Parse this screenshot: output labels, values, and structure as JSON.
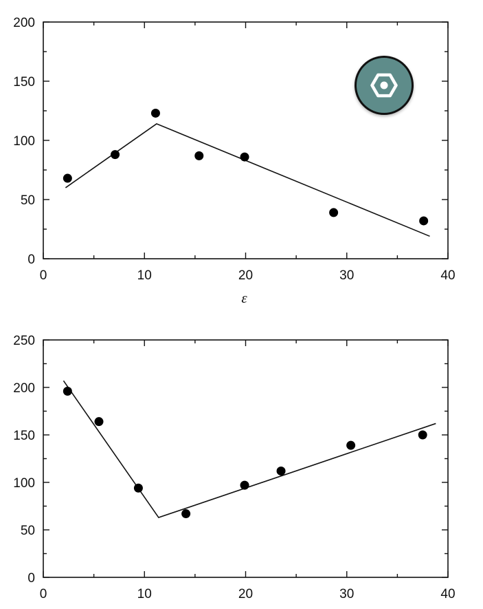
{
  "chart_data": [
    {
      "type": "scatter",
      "xlabel": "ε",
      "ylabel": "",
      "xlim": [
        0,
        40
      ],
      "ylim": [
        0,
        200
      ],
      "xticks": [
        0,
        10,
        20,
        30,
        40
      ],
      "yticks": [
        0,
        50,
        100,
        150,
        200
      ],
      "points": [
        {
          "x": 2.4,
          "y": 68
        },
        {
          "x": 7.1,
          "y": 88
        },
        {
          "x": 11.1,
          "y": 123
        },
        {
          "x": 15.4,
          "y": 87
        },
        {
          "x": 19.9,
          "y": 86
        },
        {
          "x": 28.7,
          "y": 39
        },
        {
          "x": 37.6,
          "y": 32
        }
      ],
      "fit_line": [
        {
          "x": 2.2,
          "y": 60
        },
        {
          "x": 11.2,
          "y": 114
        },
        {
          "x": 38.2,
          "y": 19
        }
      ],
      "grid": false,
      "badge_icon": "hexagon-icon",
      "badge_color": "#5e8c8a"
    },
    {
      "type": "scatter",
      "xlabel": "",
      "ylabel": "",
      "xlim": [
        0,
        40
      ],
      "ylim": [
        0,
        250
      ],
      "xticks": [
        0,
        10,
        20,
        30,
        40
      ],
      "yticks": [
        0,
        50,
        100,
        150,
        200,
        250
      ],
      "points": [
        {
          "x": 2.4,
          "y": 196
        },
        {
          "x": 5.5,
          "y": 164
        },
        {
          "x": 9.4,
          "y": 94
        },
        {
          "x": 14.1,
          "y": 67
        },
        {
          "x": 19.9,
          "y": 97
        },
        {
          "x": 23.5,
          "y": 112
        },
        {
          "x": 30.4,
          "y": 139
        },
        {
          "x": 37.5,
          "y": 150
        }
      ],
      "fit_line": [
        {
          "x": 2.0,
          "y": 207
        },
        {
          "x": 11.4,
          "y": 63
        },
        {
          "x": 38.8,
          "y": 162
        }
      ],
      "grid": false
    }
  ]
}
